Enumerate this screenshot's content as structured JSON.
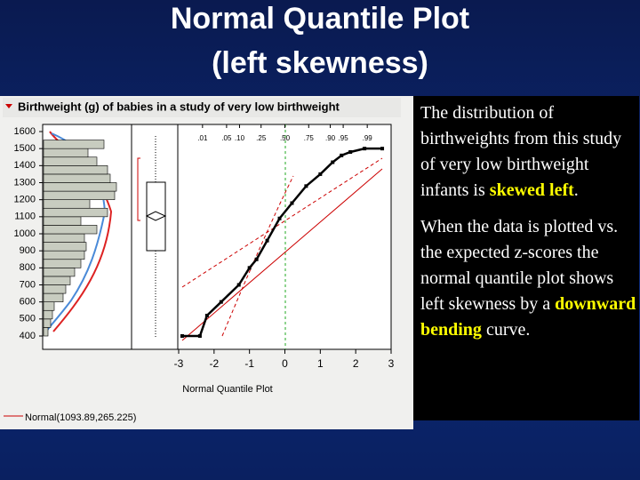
{
  "header": {
    "title_lines": [
      "Normal Quantile Plot",
      "(left skewness)"
    ]
  },
  "chart_data": {
    "type": "histogram-quantile",
    "title": "Birthweight (g) of babies in a study of very low birthweight",
    "ylim": [
      400,
      1600
    ],
    "yticks": [
      400,
      500,
      600,
      700,
      800,
      900,
      1000,
      1100,
      1200,
      1300,
      1400,
      1500,
      1600
    ],
    "xlim": [
      -3,
      3
    ],
    "xticks": [
      -3,
      -2,
      -1,
      0,
      1,
      2,
      3
    ],
    "xlabel": "Normal Quantile Plot",
    "probticks": [
      {
        "value": 0.01,
        "label": ".01"
      },
      {
        "value": 0.05,
        "label": ".05"
      },
      {
        "value": 0.1,
        "label": ".10"
      },
      {
        "value": 0.25,
        "label": ".25"
      },
      {
        "value": 0.5,
        "label": ".50"
      },
      {
        "value": 0.75,
        "label": ".75"
      },
      {
        "value": 0.9,
        "label": ".90"
      },
      {
        "value": 0.95,
        "label": ".95"
      },
      {
        "value": 0.99,
        "label": ".99"
      }
    ],
    "bins": [
      400,
      450,
      500,
      550,
      600,
      650,
      700,
      750,
      800,
      850,
      900,
      950,
      1000,
      1050,
      1100,
      1150,
      1200,
      1250,
      1300,
      1350,
      1400,
      1450,
      1500,
      1550
    ],
    "counts": [
      5,
      8,
      10,
      12,
      22,
      25,
      30,
      35,
      42,
      46,
      48,
      46,
      60,
      42,
      72,
      52,
      80,
      82,
      75,
      72,
      60,
      50,
      68
    ],
    "countlim": [
      0,
      90
    ],
    "points": {
      "x": [
        -2.9,
        -2.4,
        -2.2,
        -1.8,
        -1.3,
        -1.0,
        -0.8,
        -0.5,
        -0.15,
        0.2,
        0.6,
        1.0,
        1.35,
        1.6,
        1.85,
        2.25,
        2.75
      ],
      "y": [
        400,
        400,
        520,
        600,
        700,
        800,
        850,
        960,
        1090,
        1180,
        1280,
        1350,
        1420,
        1460,
        1480,
        1500,
        1500
      ]
    },
    "legend": "Normal(1093.89,265.225)"
  },
  "text": {
    "p1": [
      "The distribution of birthweights  from this study of very low birthweight infants is ",
      "skewed left",
      "."
    ],
    "p2": [
      "When the data is plotted vs. the expected z-scores the normal quantile plot shows left skewness by a ",
      "downward bending",
      " curve."
    ]
  }
}
